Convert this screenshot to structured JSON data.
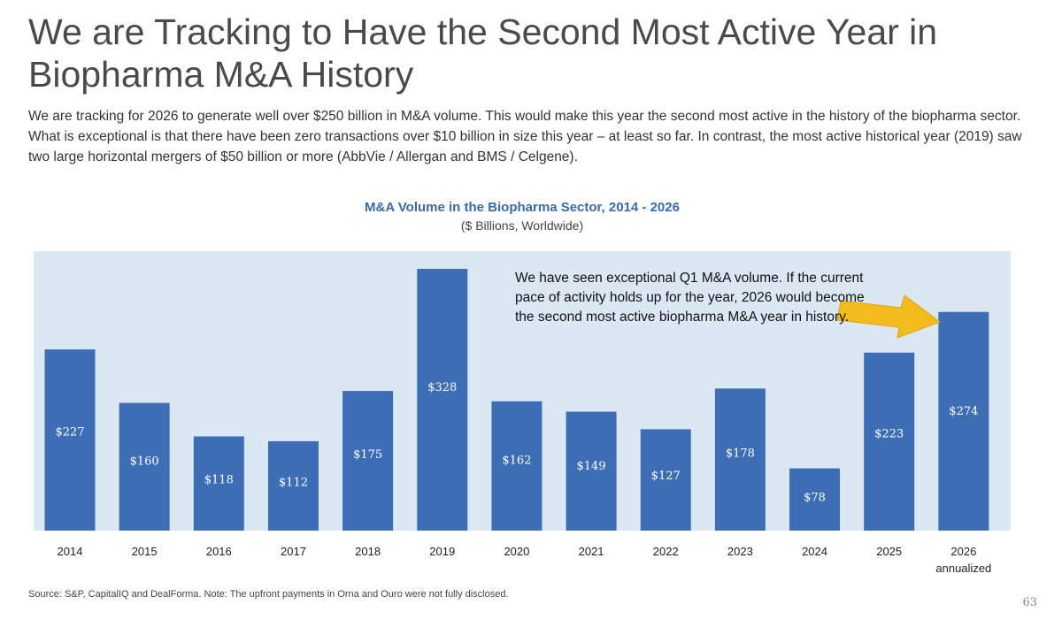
{
  "slide": {
    "title": "We are Tracking to Have the Second Most Active Year in Biopharma M&A History",
    "body": "We are tracking for 2026 to generate well over $250 billion in M&A volume. This would make this year the second most active in the history of the biopharma sector. What is exceptional is that there have been zero transactions over $10 billion in size this year – at least so far. In contrast, the most active historical year (2019) saw two large horizontal mergers of $50 billion or more (AbbVie / Allergan and BMS / Celgene).",
    "callout": "We have seen exceptional Q1 M&A volume. If the current pace of activity holds up for the year, 2026 would become the second most active biopharma M&A year in history.",
    "source": "Source: S&P, CapitalIQ and DealForma. Note: The upfront payments in Orna and Ouro were not fully disclosed.",
    "page_number": "63"
  },
  "chart_data": {
    "type": "bar",
    "title": "M&A Volume in the Biopharma Sector, 2014 - 2026",
    "subtitle": "($ Billions, Worldwide)",
    "categories": [
      "2014",
      "2015",
      "2016",
      "2017",
      "2018",
      "2019",
      "2020",
      "2021",
      "2022",
      "2023",
      "2024",
      "2025",
      "2026"
    ],
    "category_sublabels": [
      "",
      "",
      "",
      "",
      "",
      "",
      "",
      "",
      "",
      "",
      "",
      "",
      "annualized"
    ],
    "values": [
      227,
      160,
      118,
      112,
      175,
      328,
      162,
      149,
      127,
      178,
      78,
      223,
      274
    ],
    "value_labels": [
      "$227",
      "$160",
      "$118",
      "$112",
      "$175",
      "$328",
      "$162",
      "$149",
      "$127",
      "$178",
      "$78",
      "$223",
      "$274"
    ],
    "ylim": [
      0,
      328
    ],
    "grid": false,
    "bar_color": "#3d6db5",
    "plot_background": "#dce7f4",
    "arrow_color": "#f2bc1e"
  }
}
